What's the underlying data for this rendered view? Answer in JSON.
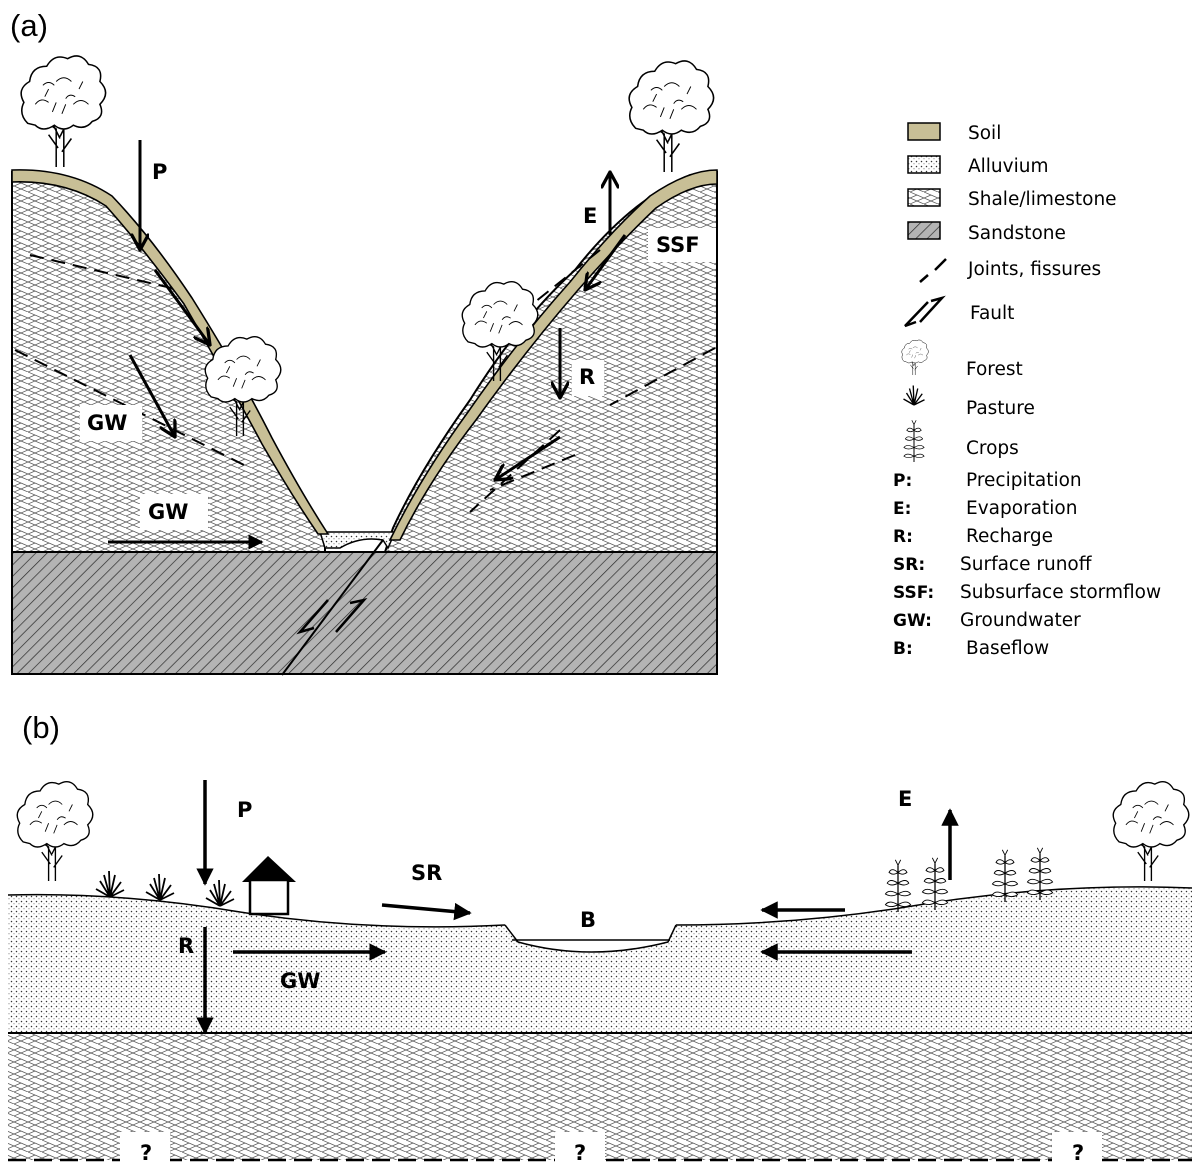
{
  "panel_a": {
    "tag": "(a)",
    "labels": {
      "p": "P",
      "e": "E",
      "ssf": "SSF",
      "r": "R",
      "gw_upper": "GW",
      "gw_lower": "GW"
    }
  },
  "panel_b": {
    "tag": "(b)",
    "labels": {
      "p": "P",
      "e": "E",
      "sr": "SR",
      "b": "B",
      "r": "R",
      "gw": "GW"
    },
    "unknown_marks": [
      "?",
      "?",
      "?"
    ]
  },
  "legend": {
    "materials": [
      {
        "label": "Soil",
        "fill": "soil"
      },
      {
        "label": "Alluvium",
        "fill": "dots"
      },
      {
        "label": "Shale/limestone",
        "fill": "brick"
      },
      {
        "label": "Sandstone",
        "fill": "hatch"
      }
    ],
    "line_symbols": [
      {
        "label": "Joints, fissures",
        "symbol": "dashed-line-icon"
      },
      {
        "label": "Fault",
        "symbol": "fault-arrows-icon"
      }
    ],
    "land_use": [
      {
        "label": "Forest",
        "symbol": "tree-icon"
      },
      {
        "label": "Pasture",
        "symbol": "grass-icon"
      },
      {
        "label": "Crops",
        "symbol": "crop-icon"
      }
    ],
    "abbreviations": [
      {
        "abbr": "P:",
        "meaning": "Precipitation"
      },
      {
        "abbr": "E:",
        "meaning": "Evaporation"
      },
      {
        "abbr": "R:",
        "meaning": "Recharge"
      },
      {
        "abbr": "SR:",
        "meaning": "Surface runoff"
      },
      {
        "abbr": "SSF:",
        "meaning": "Subsurface stormflow"
      },
      {
        "abbr": "GW:",
        "meaning": "Groundwater"
      },
      {
        "abbr": "B:",
        "meaning": "Baseflow"
      }
    ]
  },
  "colors": {
    "soil": "#c8bf96",
    "sandstone": "#b4b4b4",
    "ink": "#000000",
    "background": "#ffffff"
  }
}
